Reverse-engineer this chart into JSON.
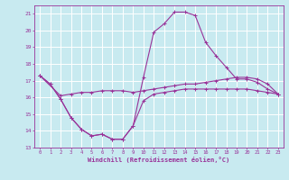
{
  "xlabel": "Windchill (Refroidissement éolien,°C)",
  "background_color": "#c8eaf0",
  "grid_color": "#ffffff",
  "line_color": "#993399",
  "xlim": [
    -0.5,
    23.5
  ],
  "ylim": [
    13,
    21.5
  ],
  "yticks": [
    13,
    14,
    15,
    16,
    17,
    18,
    19,
    20,
    21
  ],
  "xticks": [
    0,
    1,
    2,
    3,
    4,
    5,
    6,
    7,
    8,
    9,
    10,
    11,
    12,
    13,
    14,
    15,
    16,
    17,
    18,
    19,
    20,
    21,
    22,
    23
  ],
  "line1_x": [
    0,
    1,
    2,
    3,
    4,
    5,
    6,
    7,
    8,
    9,
    10,
    11,
    12,
    13,
    14,
    15,
    16,
    17,
    18,
    19,
    20,
    21,
    22,
    23
  ],
  "line1_y": [
    17.3,
    16.8,
    15.9,
    14.8,
    14.1,
    13.7,
    13.8,
    13.5,
    13.5,
    14.3,
    15.8,
    16.2,
    16.3,
    16.4,
    16.5,
    16.5,
    16.5,
    16.5,
    16.5,
    16.5,
    16.5,
    16.4,
    16.3,
    16.2
  ],
  "line2_x": [
    0,
    1,
    2,
    3,
    4,
    5,
    6,
    7,
    8,
    9,
    10,
    11,
    12,
    13,
    14,
    15,
    16,
    17,
    18,
    19,
    20,
    21,
    22,
    23
  ],
  "line2_y": [
    17.3,
    16.8,
    15.9,
    14.8,
    14.1,
    13.7,
    13.8,
    13.5,
    13.5,
    14.3,
    17.2,
    19.9,
    20.4,
    21.1,
    21.1,
    20.9,
    19.3,
    18.5,
    17.8,
    17.1,
    17.1,
    16.9,
    16.5,
    16.2
  ],
  "line3_x": [
    0,
    2,
    3,
    4,
    5,
    6,
    7,
    8,
    9,
    10,
    11,
    12,
    13,
    14,
    15,
    16,
    17,
    18,
    19,
    20,
    21,
    22,
    23
  ],
  "line3_y": [
    17.3,
    16.1,
    16.2,
    16.3,
    16.3,
    16.4,
    16.4,
    16.4,
    16.3,
    16.4,
    16.5,
    16.6,
    16.7,
    16.8,
    16.8,
    16.9,
    17.0,
    17.1,
    17.2,
    17.2,
    17.1,
    16.8,
    16.2
  ]
}
